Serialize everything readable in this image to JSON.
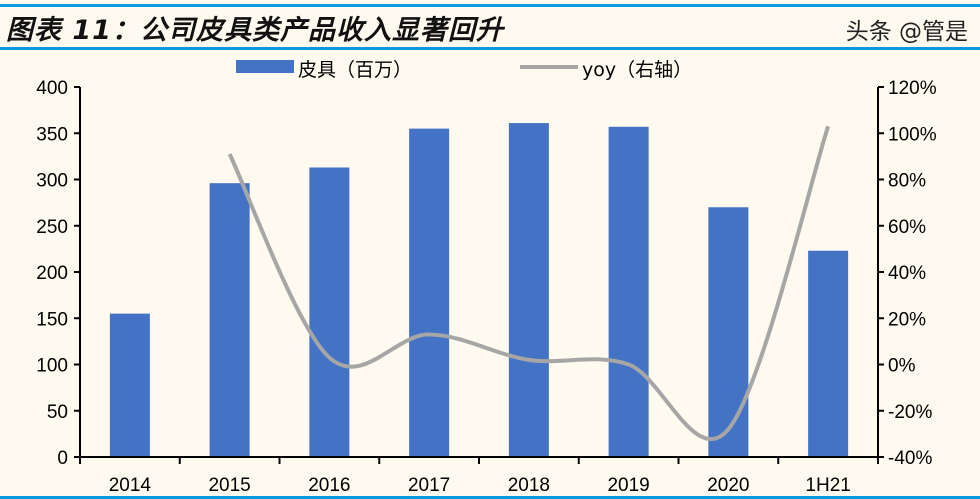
{
  "title": "图表 11：公司皮具类产品收入显著回升",
  "watermark": "头条 @管是",
  "colors": {
    "bar": "#4472c4",
    "line": "#a6a6a6",
    "rule": "#0a9ae0",
    "background": "#fffaf0"
  },
  "chart_data": {
    "type": "bar+line",
    "categories": [
      "2014",
      "2015",
      "2016",
      "2017",
      "2018",
      "2019",
      "2020",
      "1H21"
    ],
    "series": [
      {
        "name": "皮具（百万）",
        "type": "bar",
        "axis": "left",
        "values": [
          155,
          296,
          313,
          355,
          361,
          357,
          270,
          223
        ]
      },
      {
        "name": "yoy（右轴）",
        "type": "line",
        "axis": "right",
        "smooth": true,
        "values": [
          null,
          91,
          3,
          13,
          2,
          0,
          -28,
          103
        ]
      }
    ],
    "left_axis": {
      "min": 0,
      "max": 400,
      "ticks": [
        "0",
        "50",
        "100",
        "150",
        "200",
        "250",
        "300",
        "350",
        "400"
      ]
    },
    "right_axis": {
      "min": -40,
      "max": 120,
      "ticks": [
        "-40%",
        "-20%",
        "0%",
        "20%",
        "40%",
        "60%",
        "80%",
        "100%",
        "120%"
      ]
    },
    "legend_position": "top",
    "grid": false
  }
}
